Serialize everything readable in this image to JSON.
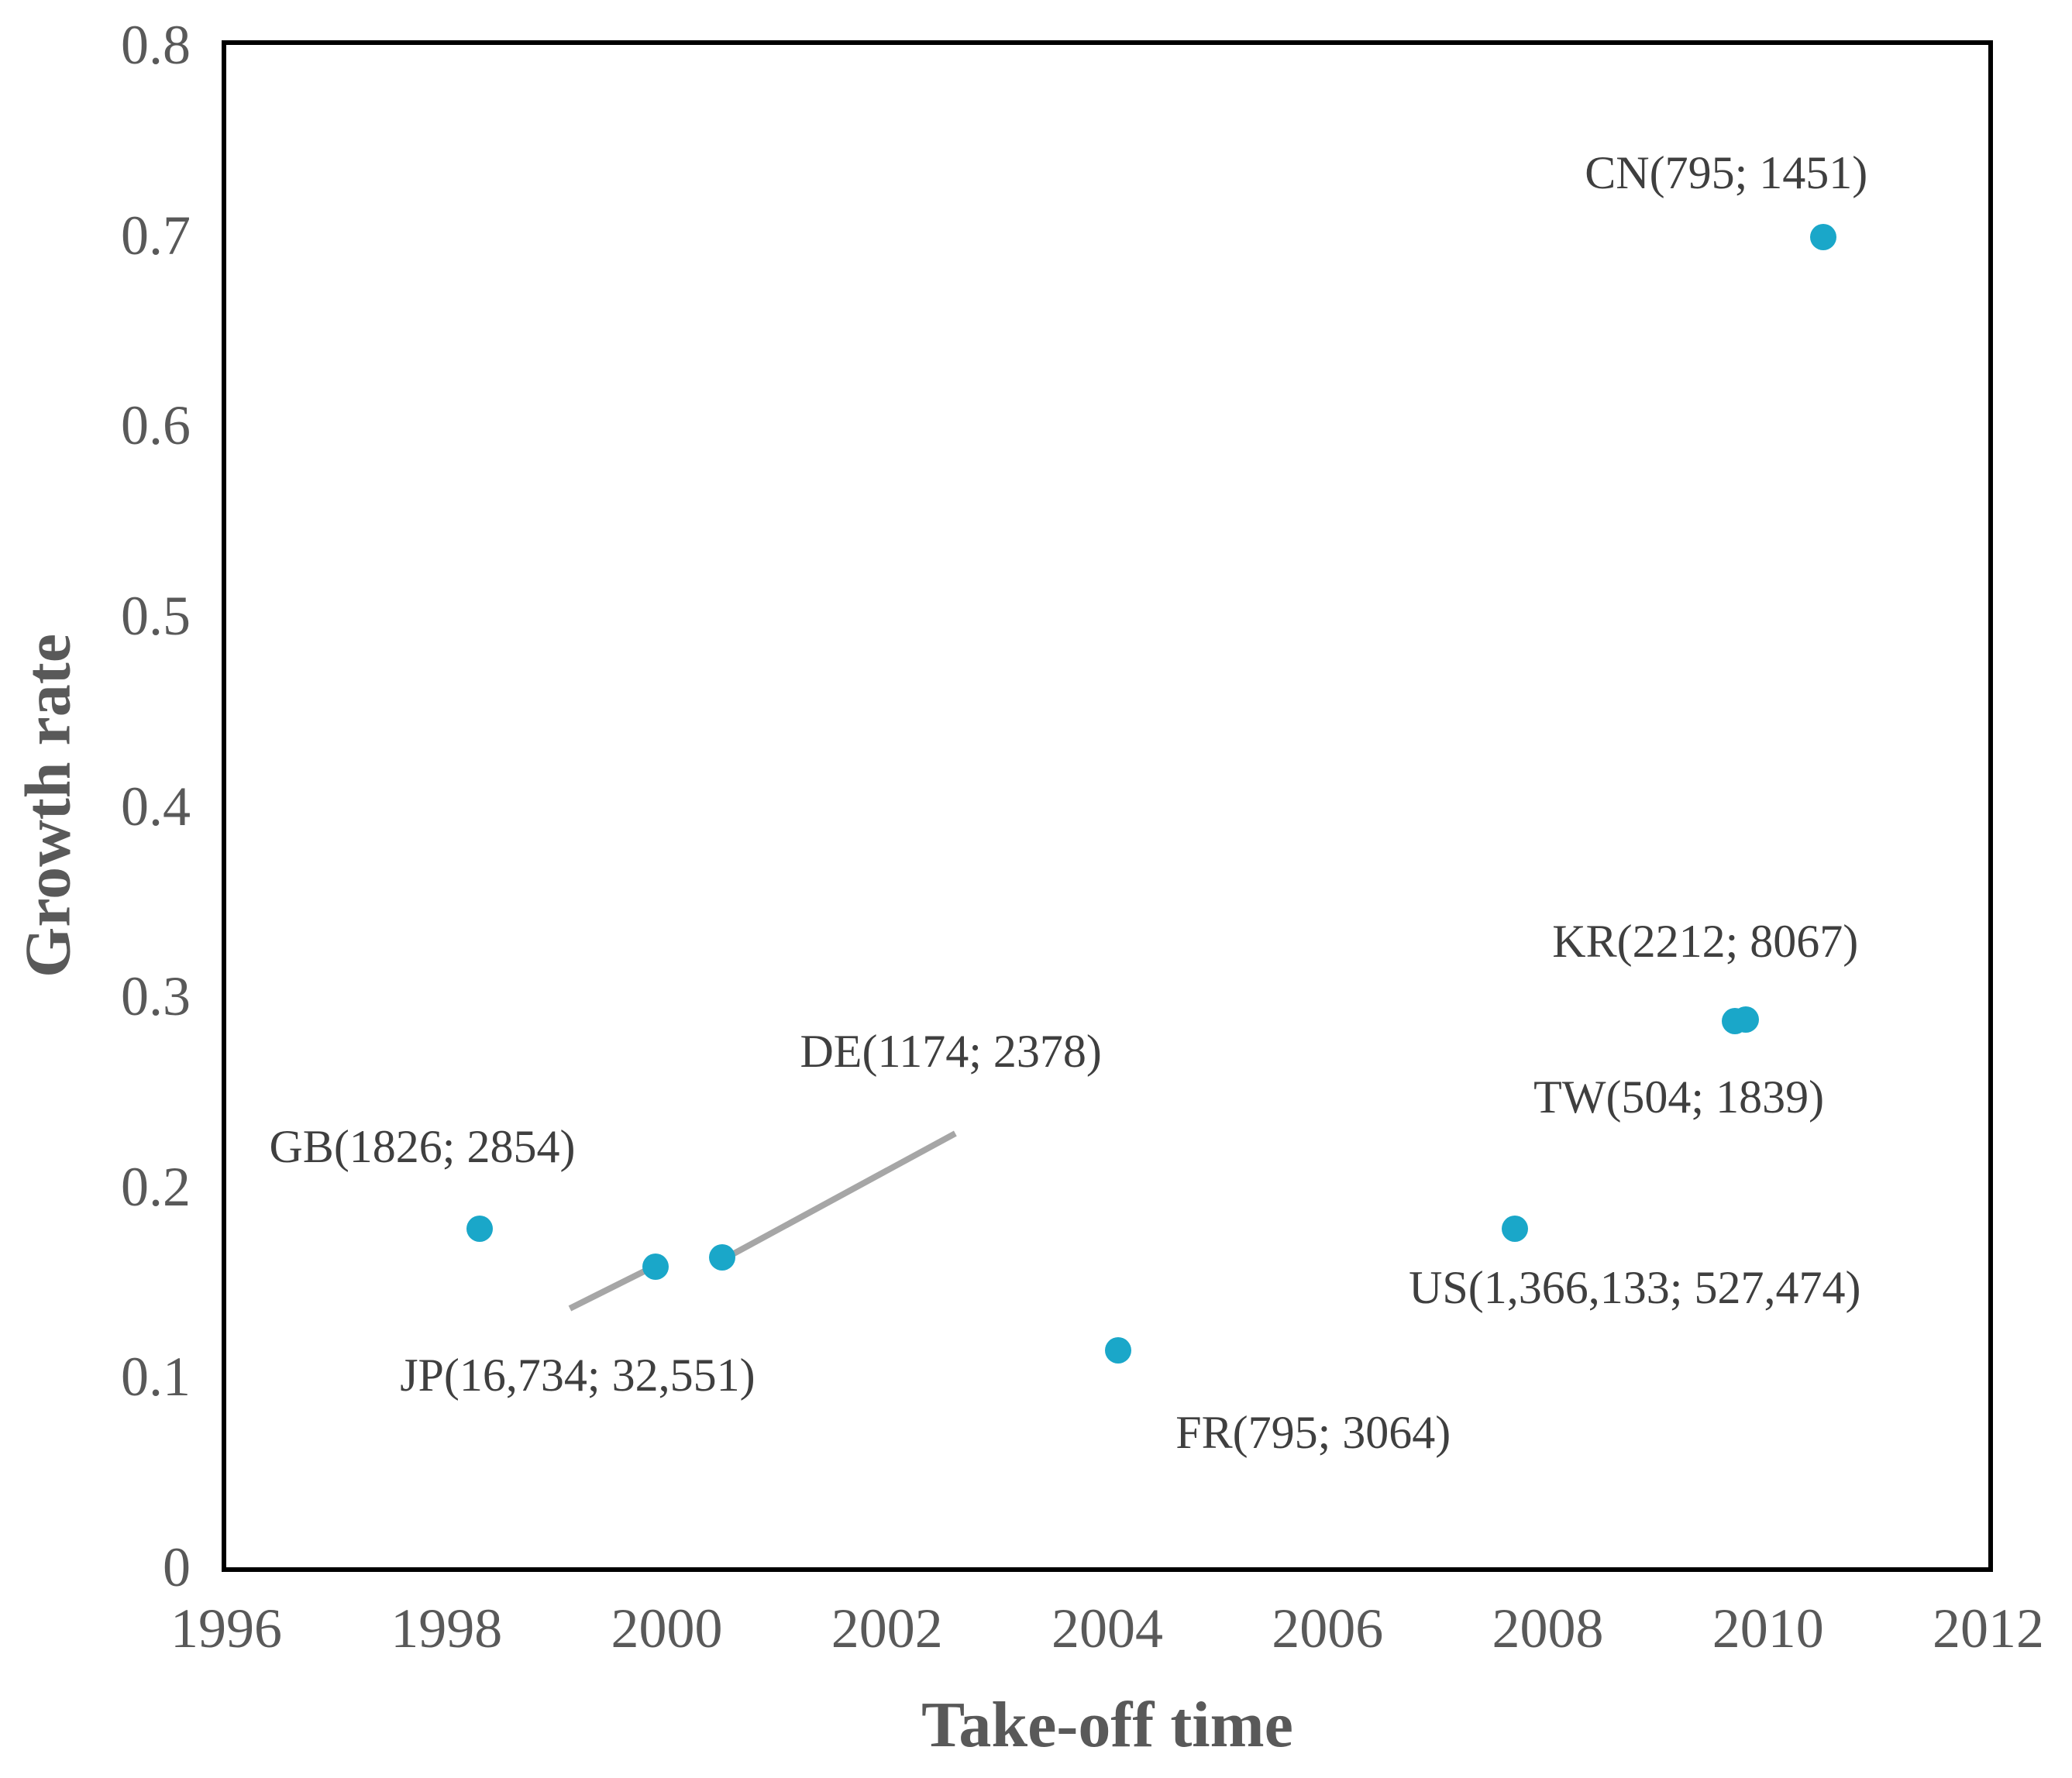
{
  "chart_data": {
    "type": "scatter",
    "title": "",
    "xlabel": "Take-off time",
    "ylabel": "Growth rate",
    "xlim": [
      1996,
      2012
    ],
    "ylim": [
      0,
      0.8
    ],
    "grid": false,
    "legend": "none",
    "marker_color": "#1aa7c9",
    "leader_line_color": "#a6a6a6",
    "axis_color": "#000000",
    "tick_label_color": "#595959",
    "annotation_color": "#3f3f3f",
    "x_ticks": [
      {
        "value": 1996,
        "label": "1996"
      },
      {
        "value": 1998,
        "label": "1998"
      },
      {
        "value": 2000,
        "label": "2000"
      },
      {
        "value": 2002,
        "label": "2002"
      },
      {
        "value": 2004,
        "label": "2004"
      },
      {
        "value": 2006,
        "label": "2006"
      },
      {
        "value": 2008,
        "label": "2008"
      },
      {
        "value": 2010,
        "label": "2010"
      },
      {
        "value": 2012,
        "label": "2012"
      }
    ],
    "y_ticks": [
      {
        "value": 0,
        "label": "0"
      },
      {
        "value": 0.1,
        "label": "0.1"
      },
      {
        "value": 0.2,
        "label": "0.2"
      },
      {
        "value": 0.3,
        "label": "0.3"
      },
      {
        "value": 0.4,
        "label": "0.4"
      },
      {
        "value": 0.5,
        "label": "0.5"
      },
      {
        "value": 0.6,
        "label": "0.6"
      },
      {
        "value": 0.7,
        "label": "0.7"
      },
      {
        "value": 0.8,
        "label": "0.8"
      }
    ],
    "points": [
      {
        "code": "GB",
        "label": "GB(1826; 2854)",
        "x": 1998.3,
        "y": 0.178,
        "label_x": 1997.78,
        "label_y": 0.221
      },
      {
        "code": "JP",
        "label": "JP(16,734; 32,551)",
        "x": 1999.9,
        "y": 0.158,
        "label_x": 1999.19,
        "label_y": 0.101
      },
      {
        "code": "DE",
        "label": "DE(1174; 2378)",
        "x": 2000.5,
        "y": 0.163,
        "label_x": 2002.58,
        "label_y": 0.271
      },
      {
        "code": "FR",
        "label": "FR(795; 3064)",
        "x": 2004.1,
        "y": 0.114,
        "label_x": 2005.87,
        "label_y": 0.071
      },
      {
        "code": "US",
        "label": "US(1,366,133; 527,474)",
        "x": 2007.7,
        "y": 0.178,
        "label_x": 2008.79,
        "label_y": 0.147
      },
      {
        "code": "TW",
        "label": "TW(504; 1839)",
        "x": 2009.7,
        "y": 0.287,
        "label_x": 2009.19,
        "label_y": 0.247
      },
      {
        "code": "KR",
        "label": "KR(2212; 8067)",
        "x": 2009.8,
        "y": 0.288,
        "label_x": 2009.43,
        "label_y": 0.329
      },
      {
        "code": "CN",
        "label": "CN(795; 1451)",
        "x": 2010.5,
        "y": 0.699,
        "label_x": 2009.62,
        "label_y": 0.733
      }
    ],
    "leader_lines": [
      {
        "from_code": "JP",
        "x1": 1999.12,
        "y1": 0.136,
        "x2": 1999.88,
        "y2": 0.158
      },
      {
        "from_code": "DE",
        "x1": 2000.55,
        "y1": 0.163,
        "x2": 2002.62,
        "y2": 0.228
      }
    ]
  }
}
